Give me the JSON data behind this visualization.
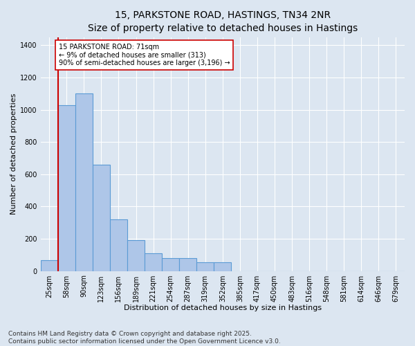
{
  "title1": "15, PARKSTONE ROAD, HASTINGS, TN34 2NR",
  "title2": "Size of property relative to detached houses in Hastings",
  "xlabel": "Distribution of detached houses by size in Hastings",
  "ylabel": "Number of detached properties",
  "bin_labels": [
    "25sqm",
    "58sqm",
    "90sqm",
    "123sqm",
    "156sqm",
    "189sqm",
    "221sqm",
    "254sqm",
    "287sqm",
    "319sqm",
    "352sqm",
    "385sqm",
    "417sqm",
    "450sqm",
    "483sqm",
    "516sqm",
    "548sqm",
    "581sqm",
    "614sqm",
    "646sqm",
    "679sqm"
  ],
  "bar_heights": [
    65,
    1030,
    1100,
    660,
    320,
    190,
    110,
    80,
    80,
    55,
    55,
    0,
    0,
    0,
    0,
    0,
    0,
    0,
    0,
    0,
    0
  ],
  "bar_color": "#aec6e8",
  "bar_edge_color": "#5b9bd5",
  "red_line_x": 0.5,
  "annotation_text": "15 PARKSTONE ROAD: 71sqm\n← 9% of detached houses are smaller (313)\n90% of semi-detached houses are larger (3,196) →",
  "annotation_box_color": "#ffffff",
  "annotation_box_edge": "#cc0000",
  "ylim": [
    0,
    1450
  ],
  "background_color": "#dce6f1",
  "plot_bg_color": "#dce6f1",
  "grid_color": "#ffffff",
  "footer1": "Contains HM Land Registry data © Crown copyright and database right 2025.",
  "footer2": "Contains public sector information licensed under the Open Government Licence v3.0.",
  "title_fontsize": 10,
  "subtitle_fontsize": 9,
  "axis_label_fontsize": 8,
  "tick_fontsize": 7,
  "annot_fontsize": 7,
  "footer_fontsize": 6.5
}
